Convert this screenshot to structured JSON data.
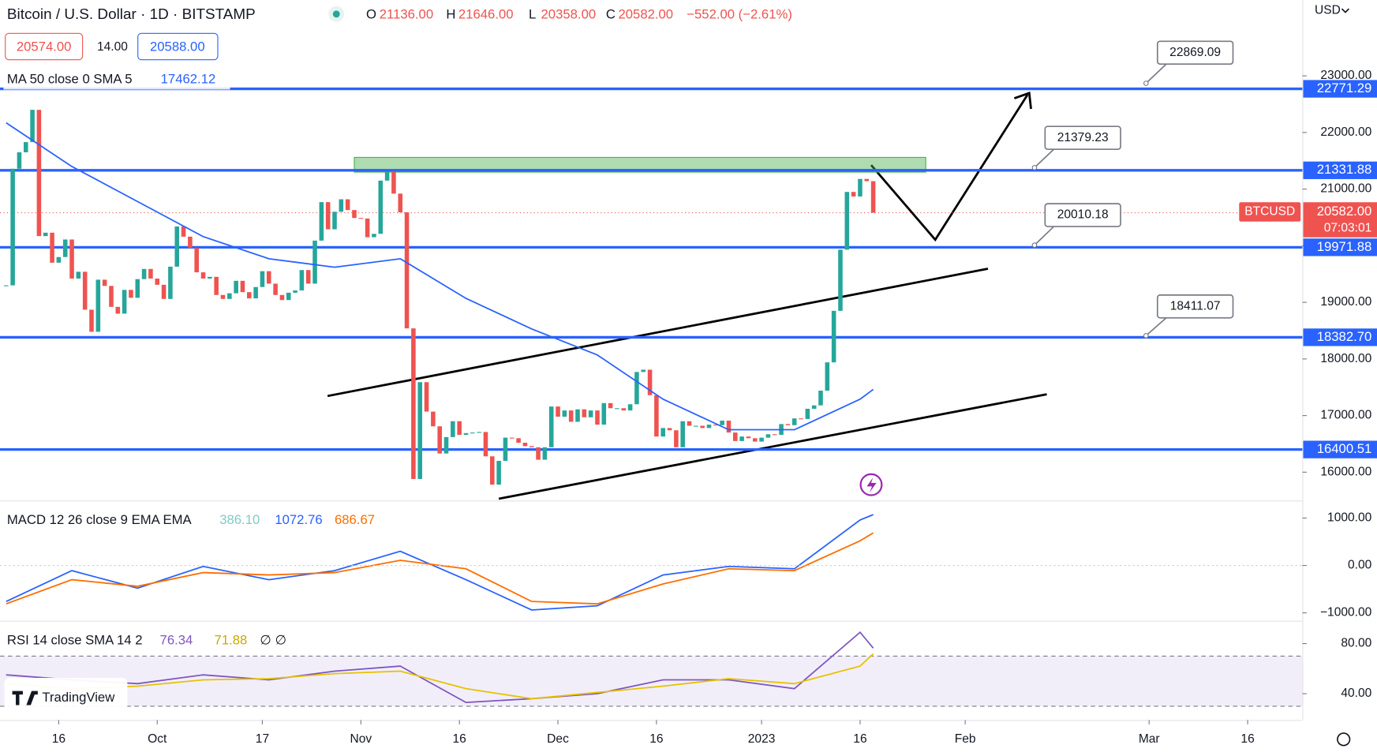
{
  "header": {
    "title": "Bitcoin / U.S. Dollar · 1D · BITSTAMP",
    "ohlc": [
      {
        "key": "O",
        "value": "21136.00"
      },
      {
        "key": "H",
        "value": "21646.00"
      },
      {
        "key": "L",
        "value": "20358.00"
      },
      {
        "key": "C",
        "value": "20582.00"
      }
    ],
    "change": "−552.00 (−2.61%)",
    "bid": "20574.00",
    "spread": "14.00",
    "ask": "20588.00",
    "currency": "USD"
  },
  "branding": "TradingView",
  "chart_data": [
    {
      "type": "candlestick",
      "name": "BTCUSD",
      "up_color": "#26a69a",
      "down_color": "#ef5350",
      "values": [
        19300,
        21360,
        21650,
        21830,
        22400,
        20170,
        20230,
        19700,
        19800,
        20110,
        19420,
        19540,
        18870,
        18480,
        19400,
        19290,
        18920,
        18800,
        19220,
        19080,
        19410,
        19590,
        19420,
        19310,
        19060,
        19630,
        20340,
        20160,
        19960,
        19530,
        19420,
        19450,
        19130,
        19060,
        19160,
        19380,
        19180,
        19070,
        19270,
        19550,
        19330,
        19130,
        19040,
        19170,
        19210,
        19570,
        19330,
        20090,
        20770,
        20290,
        20600,
        20820,
        20630,
        20490,
        20480,
        20150,
        20210,
        21150,
        21300,
        20920,
        20590,
        18540,
        15880,
        17590,
        17070,
        16810,
        16330,
        16620,
        16900,
        16660,
        16690,
        16700,
        16710,
        16280,
        15780,
        16200,
        16610,
        16600,
        16520,
        16460,
        16440,
        16220,
        16440,
        17160,
        16980,
        17090,
        16890,
        17110,
        16970,
        17090,
        16840,
        17220,
        17130,
        17130,
        17090,
        17200,
        17770,
        17810,
        17360,
        16630,
        16780,
        16740,
        16440,
        16900,
        16820,
        16820,
        16780,
        16840,
        16830,
        16910,
        16700,
        16550,
        16630,
        16600,
        16540,
        16610,
        16670,
        16660,
        16850,
        16830,
        16950,
        16940,
        17120,
        17180,
        17440,
        17940,
        18850,
        19930,
        20950,
        20870,
        21180,
        21140,
        20582
      ],
      "ylim": [
        15500,
        24340
      ],
      "yticks": [
        {
          "value": 23000,
          "label": "23000.00"
        },
        {
          "value": 22000,
          "label": "22000.00"
        },
        {
          "value": 21000,
          "label": "21000.00"
        },
        {
          "value": 20000,
          "label": "20000.00"
        },
        {
          "value": 19000,
          "label": "19000.00"
        },
        {
          "value": 18000,
          "label": "18000.00"
        },
        {
          "value": 17000,
          "label": "17000.00"
        },
        {
          "value": 16000,
          "label": "16000.00"
        }
      ],
      "xlim": [
        -1,
        209
      ],
      "xticks": [
        {
          "value": 8,
          "label": "16"
        },
        {
          "value": 23,
          "label": "Oct"
        },
        {
          "value": 39,
          "label": "17"
        },
        {
          "value": 54,
          "label": "Nov"
        },
        {
          "value": 69,
          "label": "16"
        },
        {
          "value": 84,
          "label": "Dec"
        },
        {
          "value": 99,
          "label": "16"
        },
        {
          "value": 115,
          "label": "2023"
        },
        {
          "value": 130,
          "label": "16"
        },
        {
          "value": 146,
          "label": "Feb"
        },
        {
          "value": 174,
          "label": "Mar"
        },
        {
          "value": 189,
          "label": "16"
        }
      ],
      "ma": {
        "label": "MA 50 close 0 SMA 5",
        "value_label": "17462.12",
        "color": "#2962ff",
        "x": [
          0,
          10,
          20,
          30,
          40,
          50,
          60,
          70,
          80,
          90,
          100,
          110,
          120,
          130,
          132
        ],
        "values": [
          22170,
          21400,
          20780,
          20160,
          19770,
          19620,
          19770,
          19070,
          18530,
          18070,
          17290,
          16750,
          16750,
          17290,
          17462.12
        ]
      },
      "levels": [
        {
          "value": 22771.29,
          "label": "22771.29"
        },
        {
          "value": 21331.88,
          "label": "21331.88"
        },
        {
          "value": 19971.88,
          "label": "19971.88"
        },
        {
          "value": 18382.7,
          "label": "18382.70"
        },
        {
          "value": 16400.51,
          "label": "16400.51"
        }
      ],
      "level_color": "#2962ff",
      "callouts": [
        {
          "value": 22869.09,
          "label": "22869.09"
        },
        {
          "value": 21379.23,
          "label": "21379.23"
        },
        {
          "value": 20010.18,
          "label": "20010.18"
        },
        {
          "value": 18411.07,
          "label": "18411.07"
        }
      ],
      "zone": {
        "low": 21300,
        "high": 21560,
        "from": 53,
        "to": 140
      },
      "last_price": {
        "value": 20582,
        "label": "20582.00",
        "countdown": "07:03:01"
      }
    },
    {
      "type": "line",
      "title": "MACD 12 26 close 9 EMA EMA",
      "histogram_label": "386.10",
      "ylim": [
        -1167,
        1352
      ],
      "yticks": [
        {
          "value": 1000,
          "label": "1000.00"
        },
        {
          "value": 0,
          "label": "0.00"
        },
        {
          "value": -1000,
          "label": "−1000.00"
        }
      ],
      "x": [
        0,
        10,
        20,
        30,
        40,
        50,
        60,
        70,
        80,
        90,
        100,
        110,
        120,
        130,
        132
      ],
      "series": [
        {
          "color": "#2962ff",
          "value_label": "1072.76",
          "values": [
            -760,
            -110,
            -480,
            -20,
            -300,
            -110,
            300,
            -300,
            -940,
            -850,
            -200,
            -20,
            -70,
            960,
            1072.76
          ]
        },
        {
          "color": "#ff6d00",
          "value_label": "686.67",
          "values": [
            -810,
            -300,
            -440,
            -150,
            -200,
            -150,
            110,
            -70,
            -760,
            -810,
            -390,
            -70,
            -110,
            520,
            686.67
          ]
        }
      ]
    },
    {
      "type": "line",
      "title": "RSI 14 close SMA 14 2",
      "extra": "∅ ∅",
      "ylim": [
        19,
        97.5
      ],
      "band": [
        30,
        70
      ],
      "yticks": [
        {
          "value": 80,
          "label": "80.00"
        },
        {
          "value": 40,
          "label": "40.00"
        }
      ],
      "x": [
        0,
        10,
        20,
        30,
        40,
        50,
        60,
        70,
        80,
        90,
        100,
        110,
        120,
        130,
        132
      ],
      "series": [
        {
          "color": "#7e57c2",
          "value_label": "76.34",
          "values": [
            55,
            51,
            48,
            55,
            51,
            58,
            62,
            33,
            36,
            40,
            51,
            51,
            44,
            89,
            76.34
          ]
        },
        {
          "color": "#e6c200",
          "value_label": "71.88",
          "values": [
            48,
            44,
            46,
            51,
            52,
            56,
            58,
            44,
            36,
            41,
            46,
            52,
            48,
            62,
            71.88
          ]
        }
      ]
    }
  ]
}
